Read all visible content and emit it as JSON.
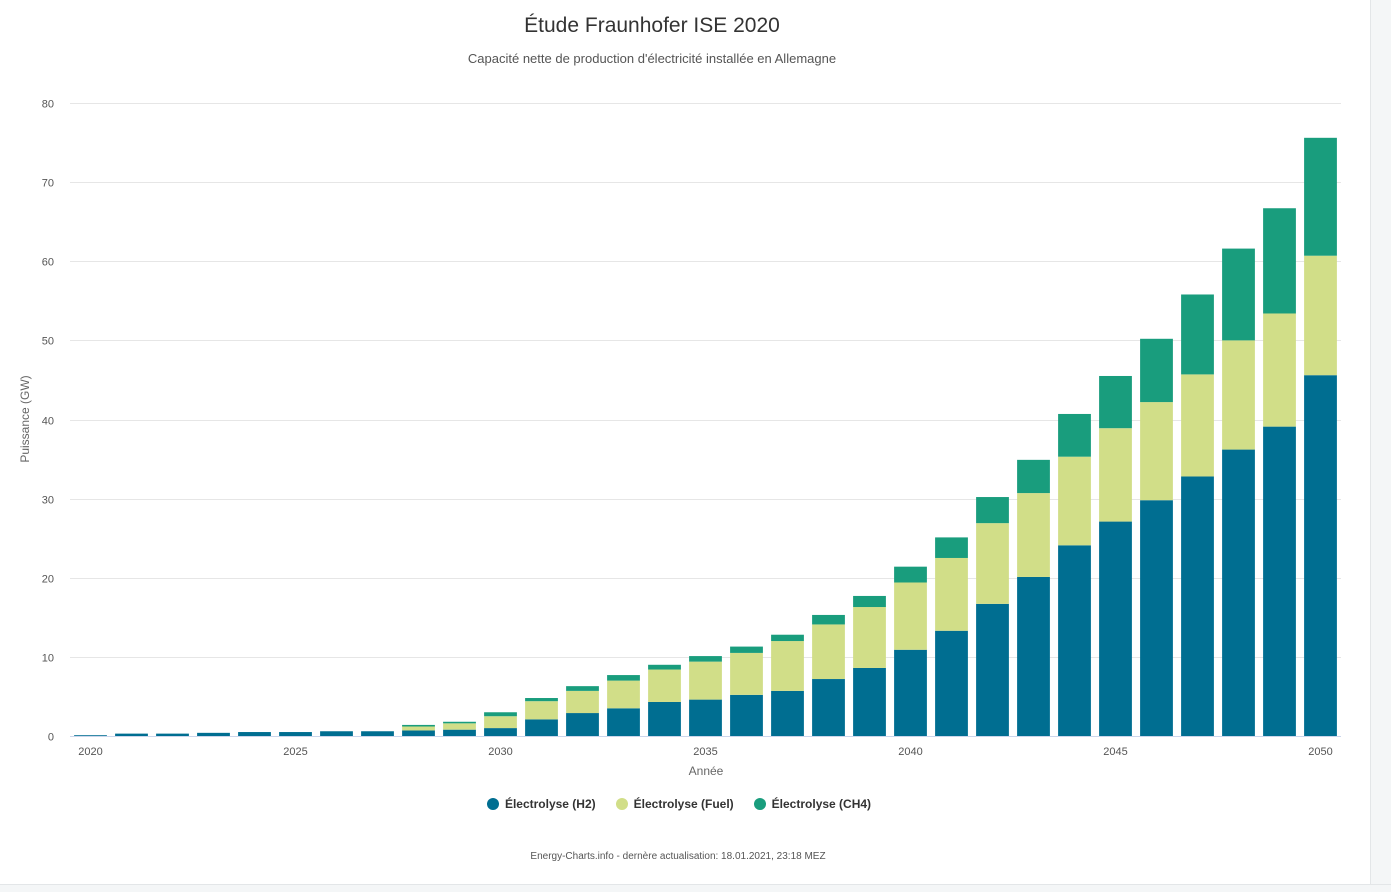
{
  "chart_data": {
    "type": "bar",
    "stacked": true,
    "title": "Étude Fraunhofer ISE 2020",
    "subtitle": "Capacité nette de production d'électricité installée en Allemagne",
    "xlabel": "Année",
    "ylabel": "Puissance (GW)",
    "ylim": [
      0,
      80
    ],
    "yticks": [
      "0",
      "10",
      "20",
      "30",
      "40",
      "50",
      "60",
      "70",
      "80"
    ],
    "xticks": [
      "2020",
      "2025",
      "2030",
      "2035",
      "2040",
      "2045",
      "2050"
    ],
    "grid": true,
    "legend_position": "bottom-center",
    "categories": [
      2020,
      2021,
      2022,
      2023,
      2024,
      2025,
      2026,
      2027,
      2028,
      2029,
      2030,
      2031,
      2032,
      2033,
      2034,
      2035,
      2036,
      2037,
      2038,
      2039,
      2040,
      2041,
      2042,
      2043,
      2044,
      2045,
      2046,
      2047,
      2048,
      2049,
      2050
    ],
    "series": [
      {
        "name": "Électrolyse (H2)",
        "color": "#006e91",
        "values": [
          0.1,
          0.3,
          0.3,
          0.4,
          0.5,
          0.5,
          0.6,
          0.6,
          0.7,
          0.8,
          1.0,
          2.1,
          2.9,
          3.5,
          4.3,
          4.6,
          5.2,
          5.7,
          7.2,
          8.6,
          10.9,
          13.3,
          16.7,
          20.1,
          24.1,
          27.1,
          29.8,
          32.8,
          36.2,
          39.1,
          45.6
        ]
      },
      {
        "name": "Électrolyse (Fuel)",
        "color": "#d1de88",
        "values": [
          0,
          0,
          0,
          0,
          0,
          0,
          0,
          0,
          0.5,
          0.8,
          1.5,
          2.3,
          2.8,
          3.5,
          4.1,
          4.8,
          5.3,
          6.3,
          6.9,
          7.7,
          8.5,
          9.2,
          10.2,
          10.6,
          11.2,
          11.8,
          12.4,
          12.9,
          13.8,
          14.3,
          15.1
        ]
      },
      {
        "name": "Électrolyse (CH4)",
        "color": "#199d7d",
        "values": [
          0,
          0,
          0,
          0,
          0,
          0,
          0,
          0,
          0.2,
          0.2,
          0.5,
          0.4,
          0.6,
          0.7,
          0.6,
          0.7,
          0.8,
          0.8,
          1.2,
          1.4,
          2.0,
          2.6,
          3.3,
          4.2,
          5.4,
          6.6,
          8.0,
          10.1,
          11.6,
          13.3,
          14.9
        ]
      }
    ]
  },
  "credits": "Energy-Charts.info - dernère actualisation: 18.01.2021, 23:18 MEZ"
}
